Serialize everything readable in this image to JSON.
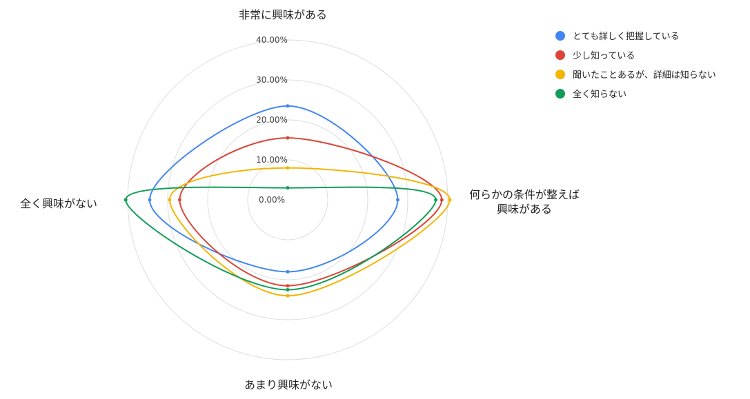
{
  "chart_data": {
    "type": "radar",
    "axes": [
      [
        "非常に興味がある"
      ],
      [
        "何らかの条件が整えば",
        "興味がある"
      ],
      [
        "あまり興味がない"
      ],
      [
        "全く興味がない"
      ]
    ],
    "tick_labels": [
      "0.00%",
      "10.00%",
      "20.00%",
      "30.00%",
      "40.00%"
    ],
    "rmax": 40,
    "grid": true,
    "legend_position": "top-right",
    "series": [
      {
        "name": "とても詳しく把握している",
        "color": "#4285F4",
        "values": [
          23.5,
          27.5,
          18.0,
          34.5
        ]
      },
      {
        "name": "少し知っている",
        "color": "#DB4437",
        "values": [
          15.5,
          38.5,
          21.5,
          27.0
        ]
      },
      {
        "name": "聞いたことあるが、詳細は知らない",
        "color": "#F4B400",
        "values": [
          8.0,
          40.5,
          24.0,
          29.5
        ]
      },
      {
        "name": "全く知らない",
        "color": "#0F9D58",
        "values": [
          3.0,
          37.0,
          22.5,
          40.5
        ]
      }
    ]
  }
}
